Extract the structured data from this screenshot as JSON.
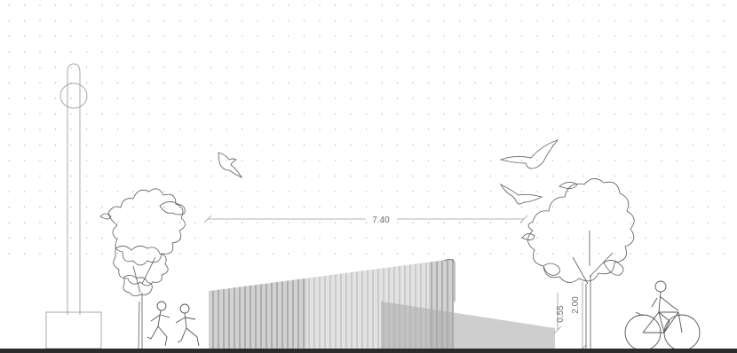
{
  "dimensions": {
    "width_label": "7.40",
    "height_small_label": "0.55",
    "height_large_label": "2.00"
  },
  "colors": {
    "line": "#9a9a9a",
    "dot": "#b8b8b8",
    "ground": "#2b2b2b"
  },
  "elements": {
    "lamp_post": "lamp-post-icon",
    "trees": [
      "tree-icon",
      "tree-icon"
    ],
    "birds": [
      "bird-icon",
      "bird-icon",
      "bird-icon"
    ],
    "people": [
      "running-child-icon",
      "running-child-icon",
      "cyclist-icon"
    ],
    "pavilion": "slatted-pavilion"
  }
}
